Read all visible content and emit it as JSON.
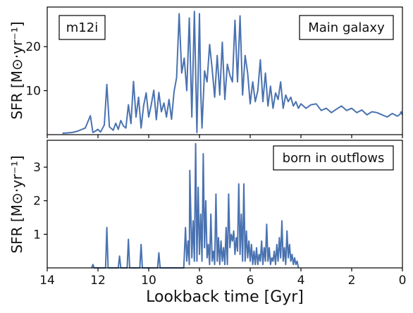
{
  "chart_data": {
    "type": "line",
    "layout": "two stacked panels sharing x axis",
    "xlabel": "Lookback time [Gyr]",
    "xlim": [
      14,
      0
    ],
    "x_axis_reversed": true,
    "xticks": [
      14,
      12,
      10,
      8,
      6,
      4,
      2,
      0
    ],
    "line_color": "#4a72b0",
    "grid": false,
    "panels": [
      {
        "ylabel": "SFR [M⊙·yr⁻¹]",
        "ylim": [
          0,
          29
        ],
        "yticks": [
          10,
          20
        ],
        "annotations": [
          {
            "text": "m12i",
            "position": "top-left"
          },
          {
            "text": "Main galaxy",
            "position": "top-right"
          }
        ],
        "series": [
          {
            "x": [
              13.4,
              13.0,
              12.8,
              12.5,
              12.3,
              12.2,
              12.1,
              12.0,
              11.9,
              11.75,
              11.65,
              11.55,
              11.4,
              11.3,
              11.2,
              11.1,
              11.0,
              10.9,
              10.8,
              10.7,
              10.6,
              10.5,
              10.4,
              10.3,
              10.2,
              10.1,
              10.0,
              9.9,
              9.8,
              9.7,
              9.6,
              9.5,
              9.4,
              9.3,
              9.2,
              9.1,
              9.0,
              8.9,
              8.8,
              8.7,
              8.6,
              8.5,
              8.4,
              8.3,
              8.2,
              8.1,
              8.05,
              8.0,
              7.95,
              7.9,
              7.8,
              7.7,
              7.6,
              7.5,
              7.4,
              7.3,
              7.2,
              7.1,
              7.0,
              6.9,
              6.8,
              6.7,
              6.6,
              6.5,
              6.4,
              6.3,
              6.2,
              6.1,
              6.0,
              5.9,
              5.8,
              5.7,
              5.6,
              5.5,
              5.4,
              5.3,
              5.2,
              5.1,
              5.0,
              4.9,
              4.8,
              4.7,
              4.6,
              4.5,
              4.4,
              4.3,
              4.2,
              4.1,
              4.0,
              3.8,
              3.6,
              3.4,
              3.2,
              3.0,
              2.8,
              2.6,
              2.4,
              2.2,
              2.0,
              1.8,
              1.6,
              1.4,
              1.2,
              1.0,
              0.8,
              0.6,
              0.4,
              0.2,
              0.1,
              0.05,
              0.0
            ],
            "y": [
              0.3,
              0.5,
              0.8,
              1.5,
              4.3,
              0.5,
              0.8,
              1.2,
              0.6,
              2.2,
              11.4,
              1.8,
              1.0,
              2.6,
              1.2,
              3.2,
              2.0,
              1.5,
              6.8,
              2.5,
              12.1,
              4.0,
              8.5,
              1.5,
              6.6,
              9.5,
              4.0,
              6.8,
              10.1,
              3.4,
              9.6,
              5.2,
              7.2,
              4.0,
              8.0,
              3.5,
              9.8,
              13.0,
              27.5,
              14.0,
              17.4,
              10.0,
              26.5,
              4.0,
              28.0,
              0.5,
              14.0,
              27.5,
              10.0,
              1.5,
              14.5,
              12.0,
              20.5,
              15.0,
              8.5,
              18.0,
              9.0,
              21.0,
              8.0,
              16.0,
              13.5,
              12.0,
              26.0,
              12.0,
              27.0,
              9.0,
              18.0,
              14.0,
              7.0,
              12.0,
              7.5,
              10.0,
              17.0,
              7.5,
              14.0,
              6.5,
              11.0,
              6.0,
              9.5,
              8.0,
              12.0,
              6.0,
              9.0,
              7.5,
              8.5,
              6.5,
              7.5,
              6.0,
              7.0,
              6.0,
              6.8,
              7.0,
              5.5,
              6.0,
              5.0,
              5.8,
              6.5,
              5.5,
              6.0,
              5.0,
              5.6,
              4.5,
              5.2,
              5.0,
              4.5,
              4.0,
              4.8,
              4.2,
              4.6,
              5.2,
              4.5
            ]
          }
        ]
      },
      {
        "ylabel": "SFR [M⊙·yr⁻¹]",
        "ylim": [
          0,
          3.8
        ],
        "yticks": [
          1,
          2,
          3
        ],
        "annotations": [
          {
            "text": "born in outflows",
            "position": "top-right"
          }
        ],
        "series": [
          {
            "x": [
              12.25,
              12.2,
              12.15,
              11.7,
              11.65,
              11.6,
              11.2,
              11.15,
              11.1,
              10.85,
              10.8,
              10.75,
              10.35,
              10.3,
              10.25,
              9.65,
              9.6,
              9.55,
              8.62,
              8.6,
              8.55,
              8.5,
              8.45,
              8.4,
              8.38,
              8.3,
              8.25,
              8.2,
              8.15,
              8.1,
              8.05,
              8.0,
              7.95,
              7.9,
              7.85,
              7.8,
              7.75,
              7.7,
              7.65,
              7.6,
              7.55,
              7.5,
              7.45,
              7.4,
              7.35,
              7.3,
              7.25,
              7.2,
              7.15,
              7.1,
              7.05,
              7.0,
              6.95,
              6.9,
              6.85,
              6.8,
              6.75,
              6.7,
              6.65,
              6.6,
              6.55,
              6.5,
              6.45,
              6.4,
              6.35,
              6.3,
              6.25,
              6.2,
              6.15,
              6.1,
              6.05,
              6.0,
              5.95,
              5.9,
              5.85,
              5.8,
              5.75,
              5.7,
              5.65,
              5.6,
              5.55,
              5.5,
              5.45,
              5.4,
              5.35,
              5.3,
              5.25,
              5.2,
              5.15,
              5.1,
              5.05,
              5.0,
              4.95,
              4.9,
              4.85,
              4.8,
              4.75,
              4.7,
              4.65,
              4.6,
              4.55,
              4.5,
              4.45,
              4.4,
              4.35,
              4.3,
              4.25,
              4.2,
              4.15,
              4.1
            ],
            "y": [
              0,
              0.1,
              0,
              0,
              1.2,
              0,
              0,
              0.35,
              0,
              0,
              0.85,
              0,
              0,
              0.7,
              0,
              0,
              0.45,
              0,
              0,
              0.3,
              1.2,
              0.2,
              0.8,
              0.1,
              2.9,
              0.3,
              1.4,
              0.2,
              3.7,
              0.2,
              2.4,
              0.4,
              1.6,
              0.2,
              3.4,
              0.6,
              2.0,
              0.3,
              0.7,
              0.1,
              1.6,
              0.2,
              0.5,
              0.1,
              2.2,
              0.2,
              0.9,
              0.1,
              0.8,
              0.2,
              0.6,
              0.1,
              1.2,
              0.1,
              2.2,
              0.6,
              1.0,
              0.8,
              1.1,
              0.4,
              0.9,
              0.5,
              2.5,
              0.4,
              1.6,
              0.2,
              2.5,
              0.2,
              1.1,
              0.3,
              0.8,
              0.2,
              0.7,
              0.1,
              0.5,
              0.1,
              0.6,
              0.1,
              0.4,
              0.2,
              0.8,
              0.1,
              0.6,
              0.2,
              1.3,
              0.2,
              0.6,
              0.1,
              0.3,
              0.2,
              0.5,
              0.1,
              0.7,
              0.2,
              0.9,
              0.3,
              1.4,
              0.2,
              0.6,
              0.1,
              1.1,
              0.3,
              0.7,
              0.2,
              0.4,
              0.1,
              0.3,
              0.1,
              0.2,
              0
            ]
          }
        ]
      }
    ]
  }
}
